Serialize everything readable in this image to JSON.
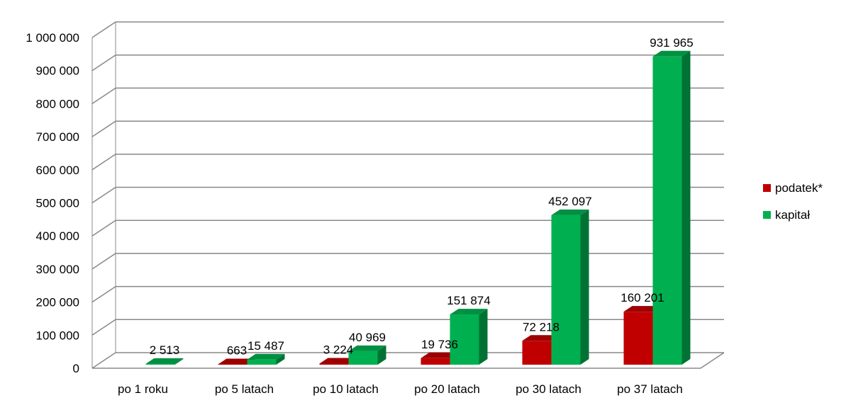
{
  "chart_data": {
    "type": "bar",
    "categories": [
      "po 1 roku",
      "po 5 latach",
      "po 10 latach",
      "po 20 latach",
      "po 30 latach",
      "po 37 latach"
    ],
    "series": [
      {
        "name": "podatek*",
        "color": "#C00000",
        "values": [
          0,
          663,
          3224,
          19736,
          72218,
          160201
        ],
        "labels": [
          "",
          "663",
          "3 224",
          "19 736",
          "72 218",
          "160 201"
        ]
      },
      {
        "name": "kapitał",
        "color": "#00B050",
        "values": [
          2513,
          15487,
          40969,
          151874,
          452097,
          931965
        ],
        "labels": [
          "2 513",
          "15 487",
          "40 969",
          "151 874",
          "452 097",
          "931 965"
        ]
      }
    ],
    "y_ticks": [
      "0",
      "100 000",
      "200 000",
      "300 000",
      "400 000",
      "500 000",
      "600 000",
      "700 000",
      "800 000",
      "900 000",
      "1 000 000"
    ],
    "ylim": [
      0,
      1000000
    ],
    "grid": true,
    "legend_position": "right",
    "style": "3d-clustered-column"
  }
}
